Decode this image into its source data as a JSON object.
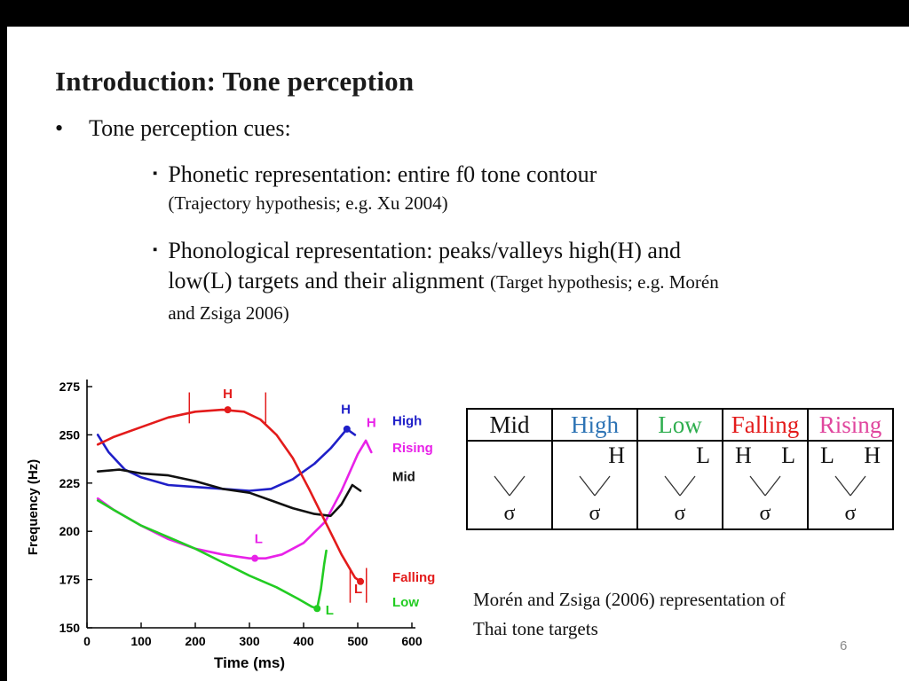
{
  "slide": {
    "title": "Introduction: Tone perception",
    "bullet": "Tone perception cues:",
    "sub_bullets": [
      {
        "main": "Phonetic representation: entire f0 tone contour",
        "note": "(Trajectory hypothesis; e.g. Xu 2004)"
      },
      {
        "main": "Phonological representation: peaks/valleys high(H) and low(L) targets and their alignment ",
        "note": "(Target hypothesis; e.g. Morén and Zsiga 2006)"
      }
    ],
    "caption_line1": "Morén and Zsiga (2006) representation of",
    "caption_line2": "Thai tone targets",
    "page_number": "6"
  },
  "chart_data": {
    "type": "line",
    "title": "",
    "xlabel": "Time (ms)",
    "ylabel": "Frequency (Hz)",
    "xlim": [
      0,
      600
    ],
    "ylim": [
      150,
      275
    ],
    "xticks": [
      0,
      100,
      200,
      300,
      400,
      500,
      600
    ],
    "yticks": [
      150,
      175,
      200,
      225,
      250,
      275
    ],
    "grid": false,
    "legend_position": "right",
    "series": [
      {
        "name": "High",
        "color": "#1f1fc8",
        "x": [
          20,
          40,
          70,
          100,
          150,
          200,
          250,
          300,
          340,
          380,
          420,
          450,
          480,
          495
        ],
        "y": [
          250,
          241,
          232,
          228,
          224,
          223,
          222,
          221,
          222,
          227,
          235,
          243,
          253,
          250
        ]
      },
      {
        "name": "Rising",
        "color": "#e822e8",
        "x": [
          20,
          50,
          100,
          150,
          200,
          250,
          300,
          330,
          360,
          400,
          440,
          470,
          500,
          515,
          525
        ],
        "y": [
          217,
          211,
          203,
          196,
          191,
          188,
          186,
          186,
          188,
          194,
          205,
          221,
          240,
          247,
          241
        ]
      },
      {
        "name": "Mid",
        "color": "#111111",
        "x": [
          20,
          60,
          100,
          150,
          200,
          250,
          300,
          340,
          380,
          420,
          450,
          470,
          490,
          505
        ],
        "y": [
          231,
          232,
          230,
          229,
          226,
          222,
          220,
          216,
          212,
          209,
          208,
          214,
          224,
          221
        ]
      },
      {
        "name": "Falling",
        "color": "#e31b1b",
        "x": [
          20,
          50,
          100,
          150,
          200,
          250,
          290,
          320,
          350,
          380,
          410,
          440,
          470,
          495,
          505
        ],
        "y": [
          245,
          249,
          254,
          259,
          262,
          263,
          262,
          258,
          250,
          238,
          222,
          205,
          188,
          176,
          174
        ]
      },
      {
        "name": "Low",
        "color": "#22cc22",
        "x": [
          20,
          50,
          100,
          150,
          200,
          250,
          300,
          350,
          390,
          415,
          425,
          432,
          438,
          442
        ],
        "y": [
          216,
          211,
          203,
          197,
          191,
          184,
          177,
          171,
          165,
          161,
          160,
          170,
          183,
          190
        ]
      }
    ],
    "markers": [
      {
        "x": 260,
        "y": 263,
        "color": "#e31b1b"
      },
      {
        "x": 480,
        "y": 253,
        "color": "#1f1fc8"
      },
      {
        "x": 310,
        "y": 186,
        "color": "#e822e8"
      },
      {
        "x": 425,
        "y": 160,
        "color": "#22cc22"
      },
      {
        "x": 505,
        "y": 174,
        "color": "#e31b1b"
      }
    ],
    "tick_bars": [
      {
        "x": 189,
        "y1": 256,
        "y2": 272,
        "color": "#e31b1b"
      },
      {
        "x": 330,
        "y1": 256,
        "y2": 272,
        "color": "#e31b1b"
      },
      {
        "x": 486,
        "y1": 163,
        "y2": 181,
        "color": "#e31b1b"
      },
      {
        "x": 516,
        "y1": 163,
        "y2": 181,
        "color": "#e31b1b"
      }
    ],
    "annotations": [
      {
        "text": "H",
        "x": 260,
        "y": 269,
        "color": "#e31b1b"
      },
      {
        "text": "H",
        "x": 478,
        "y": 261,
        "color": "#1f1fc8"
      },
      {
        "text": "H",
        "x": 525,
        "y": 254,
        "color": "#e822e8"
      },
      {
        "text": "L",
        "x": 317,
        "y": 194,
        "color": "#e822e8"
      },
      {
        "text": "L",
        "x": 448,
        "y": 157,
        "color": "#22cc22"
      },
      {
        "text": "L",
        "x": 501,
        "y": 168,
        "color": "#e31b1b"
      }
    ],
    "legend": [
      {
        "label": "High",
        "color": "#1f1fc8",
        "y_hz": 255
      },
      {
        "label": "Rising",
        "color": "#e822e8",
        "y_hz": 241
      },
      {
        "label": "Mid",
        "color": "#111111",
        "y_hz": 226
      },
      {
        "label": "Falling",
        "color": "#e31b1b",
        "y_hz": 174
      },
      {
        "label": "Low",
        "color": "#22cc22",
        "y_hz": 161
      }
    ]
  },
  "table": {
    "columns": [
      {
        "name": "Mid",
        "color": "#111111",
        "left": "",
        "right": ""
      },
      {
        "name": "High",
        "color": "#2e74b5",
        "left": "",
        "right": "H"
      },
      {
        "name": "Low",
        "color": "#2fae4f",
        "left": "",
        "right": "L"
      },
      {
        "name": "Falling",
        "color": "#e31b1b",
        "left": "H",
        "right": "L"
      },
      {
        "name": "Rising",
        "color": "#e0469e",
        "left": "L",
        "right": "H"
      }
    ],
    "sigma": "σ"
  }
}
